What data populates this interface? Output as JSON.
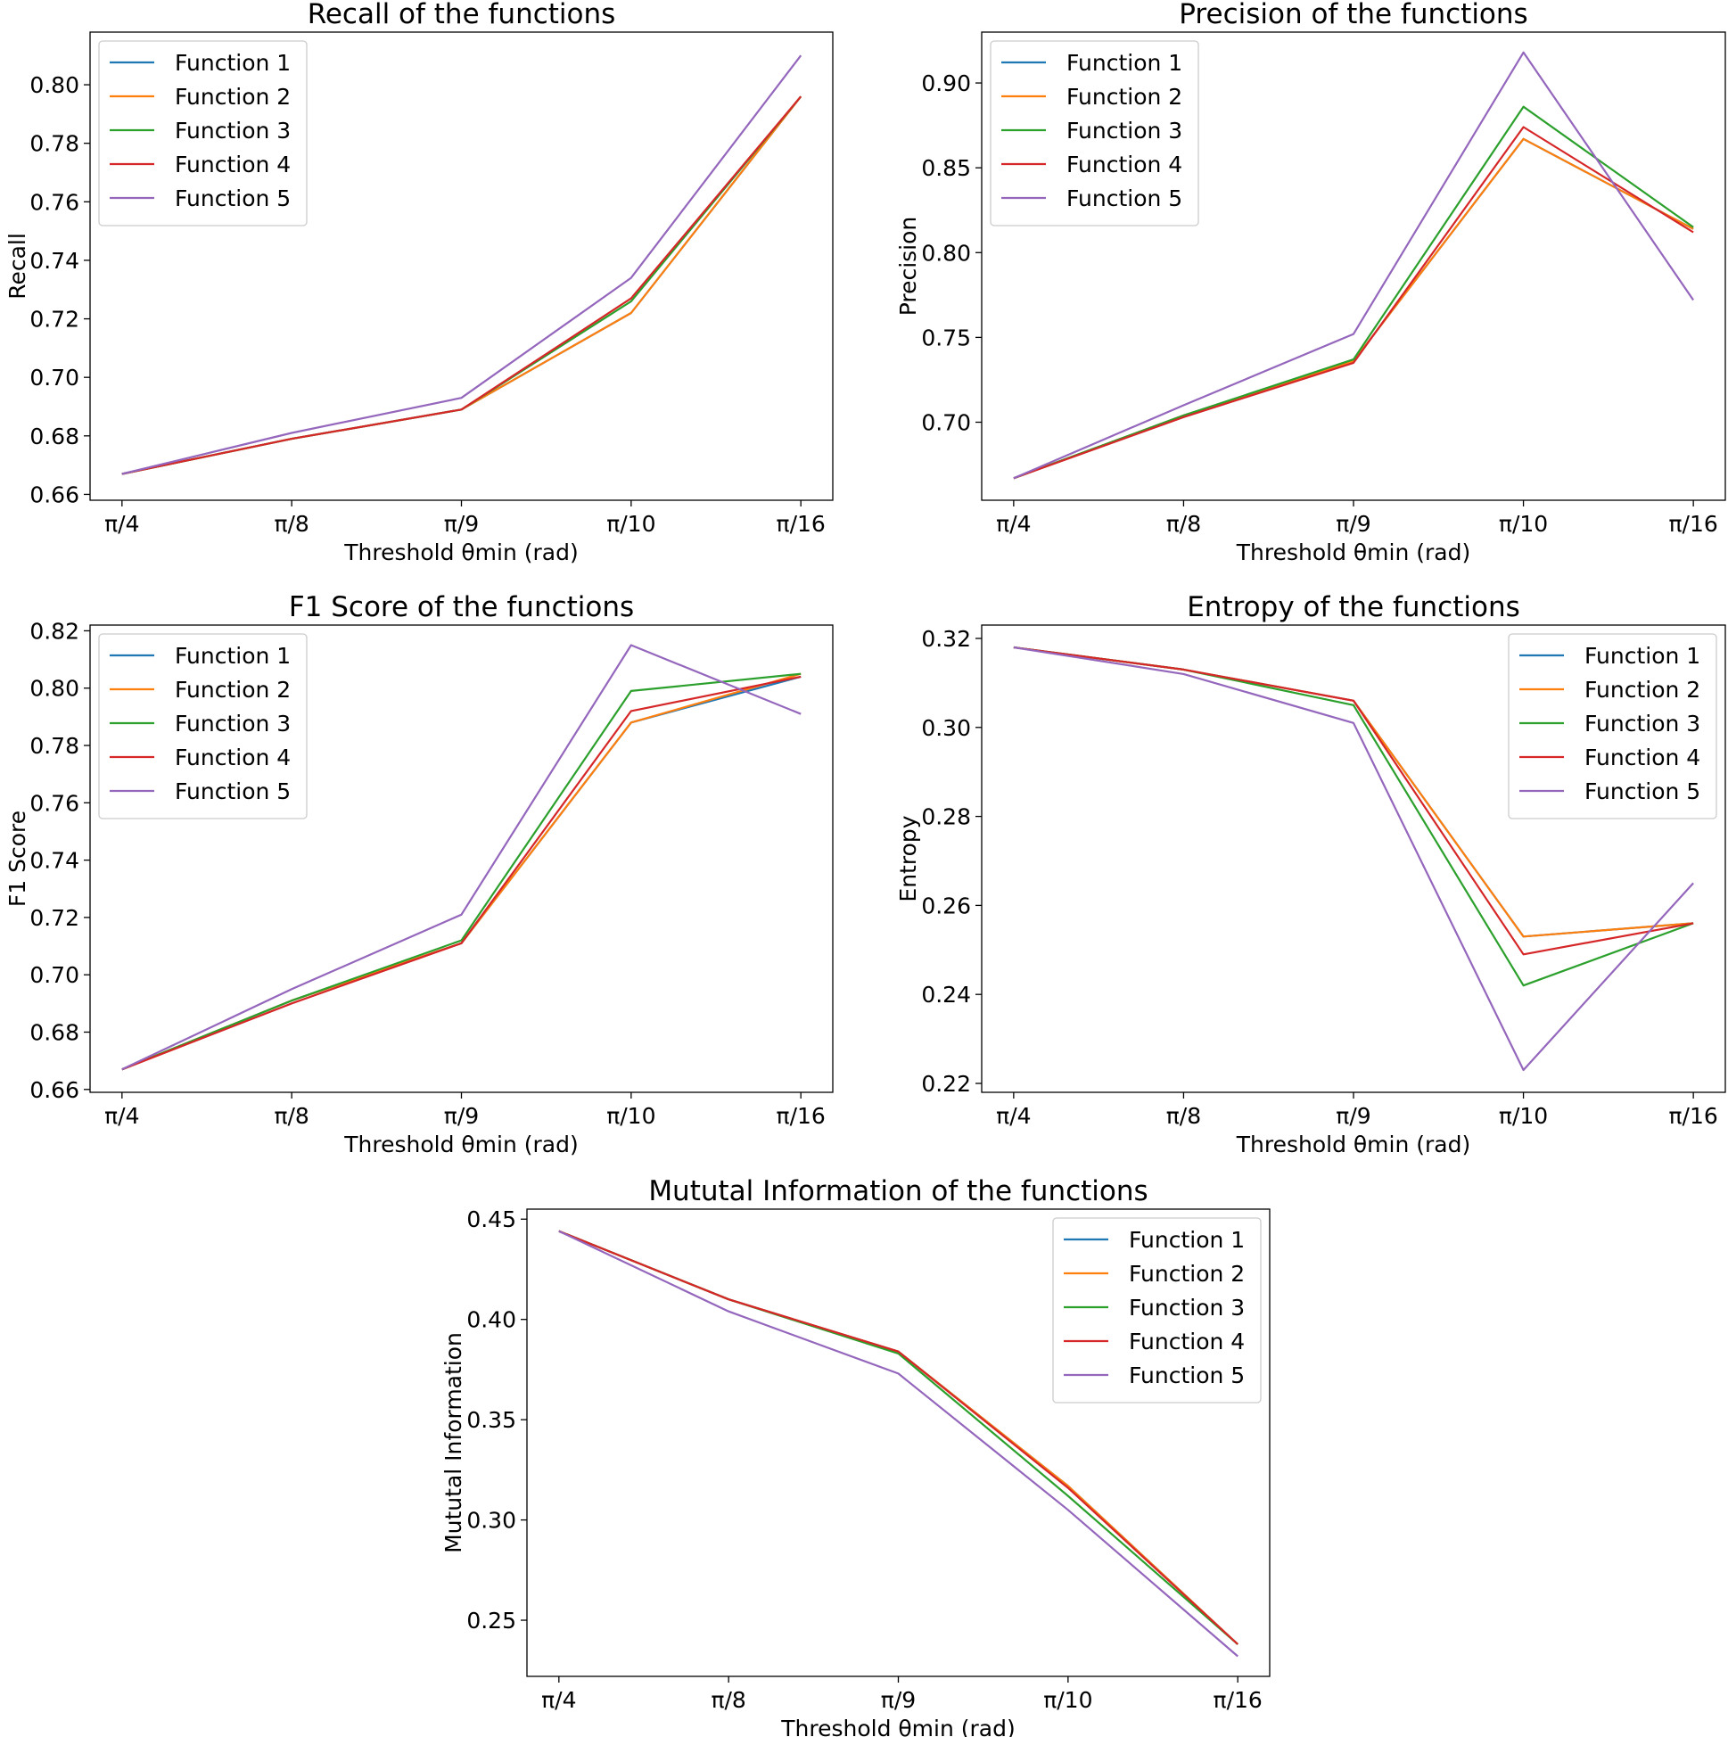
{
  "chart_data": [
    {
      "type": "line",
      "title": "Recall of the functions",
      "xlabel": "Threshold  θmin (rad)",
      "ylabel": "Recall",
      "categories": [
        "π/4",
        "π/8",
        "π/9",
        "π/10",
        "π/16"
      ],
      "ylim": [
        0.658,
        0.818
      ],
      "yticks": [
        0.66,
        0.68,
        0.7,
        0.72,
        0.74,
        0.76,
        0.78,
        0.8
      ],
      "ytick_labels": [
        "0.66",
        "0.68",
        "0.70",
        "0.72",
        "0.74",
        "0.76",
        "0.78",
        "0.80"
      ],
      "legend_position": "upper-left",
      "grid": false,
      "series": [
        {
          "name": "Function 1",
          "color": "#1f77b4",
          "values": [
            0.667,
            0.679,
            0.689,
            0.722,
            0.796
          ]
        },
        {
          "name": "Function 2",
          "color": "#ff7f0e",
          "values": [
            0.667,
            0.679,
            0.689,
            0.722,
            0.796
          ]
        },
        {
          "name": "Function 3",
          "color": "#2ca02c",
          "values": [
            0.667,
            0.679,
            0.689,
            0.726,
            0.796
          ]
        },
        {
          "name": "Function 4",
          "color": "#d62728",
          "values": [
            0.667,
            0.679,
            0.689,
            0.727,
            0.796
          ]
        },
        {
          "name": "Function 5",
          "color": "#9467bd",
          "values": [
            0.667,
            0.681,
            0.693,
            0.734,
            0.81
          ]
        }
      ]
    },
    {
      "type": "line",
      "title": "Precision of the functions",
      "xlabel": "Threshold  θmin (rad)",
      "ylabel": "Precision",
      "categories": [
        "π/4",
        "π/8",
        "π/9",
        "π/10",
        "π/16"
      ],
      "ylim": [
        0.654,
        0.93
      ],
      "yticks": [
        0.7,
        0.75,
        0.8,
        0.85,
        0.9
      ],
      "ytick_labels": [
        "0.70",
        "0.75",
        "0.80",
        "0.85",
        "0.90"
      ],
      "legend_position": "upper-left",
      "grid": false,
      "series": [
        {
          "name": "Function 1",
          "color": "#1f77b4",
          "values": [
            0.667,
            0.704,
            0.736,
            0.867,
            0.814
          ]
        },
        {
          "name": "Function 2",
          "color": "#ff7f0e",
          "values": [
            0.667,
            0.704,
            0.736,
            0.867,
            0.814
          ]
        },
        {
          "name": "Function 3",
          "color": "#2ca02c",
          "values": [
            0.667,
            0.704,
            0.737,
            0.886,
            0.815
          ]
        },
        {
          "name": "Function 4",
          "color": "#d62728",
          "values": [
            0.667,
            0.703,
            0.735,
            0.874,
            0.812
          ]
        },
        {
          "name": "Function 5",
          "color": "#9467bd",
          "values": [
            0.667,
            0.71,
            0.752,
            0.918,
            0.772
          ]
        }
      ]
    },
    {
      "type": "line",
      "title": "F1 Score of the functions",
      "xlabel": "Threshold  θmin (rad)",
      "ylabel": "F1 Score",
      "categories": [
        "π/4",
        "π/8",
        "π/9",
        "π/10",
        "π/16"
      ],
      "ylim": [
        0.659,
        0.822
      ],
      "yticks": [
        0.66,
        0.68,
        0.7,
        0.72,
        0.74,
        0.76,
        0.78,
        0.8,
        0.82
      ],
      "ytick_labels": [
        "0.66",
        "0.68",
        "0.70",
        "0.72",
        "0.74",
        "0.76",
        "0.78",
        "0.80",
        "0.82"
      ],
      "legend_position": "upper-left",
      "grid": false,
      "series": [
        {
          "name": "Function 1",
          "color": "#1f77b4",
          "values": [
            0.667,
            0.691,
            0.711,
            0.788,
            0.804
          ]
        },
        {
          "name": "Function 2",
          "color": "#ff7f0e",
          "values": [
            0.667,
            0.691,
            0.711,
            0.788,
            0.805
          ]
        },
        {
          "name": "Function 3",
          "color": "#2ca02c",
          "values": [
            0.667,
            0.691,
            0.712,
            0.799,
            0.805
          ]
        },
        {
          "name": "Function 4",
          "color": "#d62728",
          "values": [
            0.667,
            0.69,
            0.711,
            0.792,
            0.804
          ]
        },
        {
          "name": "Function 5",
          "color": "#9467bd",
          "values": [
            0.667,
            0.695,
            0.721,
            0.815,
            0.791
          ]
        }
      ]
    },
    {
      "type": "line",
      "title": "Entropy of the functions",
      "xlabel": "Threshold  θmin (rad)",
      "ylabel": "Entropy",
      "categories": [
        "π/4",
        "π/8",
        "π/9",
        "π/10",
        "π/16"
      ],
      "ylim": [
        0.218,
        0.323
      ],
      "yticks": [
        0.22,
        0.24,
        0.26,
        0.28,
        0.3,
        0.32
      ],
      "ytick_labels": [
        "0.22",
        "0.24",
        "0.26",
        "0.28",
        "0.30",
        "0.32"
      ],
      "legend_position": "upper-right",
      "grid": false,
      "series": [
        {
          "name": "Function 1",
          "color": "#1f77b4",
          "values": [
            0.318,
            0.313,
            0.306,
            0.253,
            0.256
          ]
        },
        {
          "name": "Function 2",
          "color": "#ff7f0e",
          "values": [
            0.318,
            0.313,
            0.306,
            0.253,
            0.256
          ]
        },
        {
          "name": "Function 3",
          "color": "#2ca02c",
          "values": [
            0.318,
            0.313,
            0.305,
            0.242,
            0.256
          ]
        },
        {
          "name": "Function 4",
          "color": "#d62728",
          "values": [
            0.318,
            0.313,
            0.306,
            0.249,
            0.256
          ]
        },
        {
          "name": "Function 5",
          "color": "#9467bd",
          "values": [
            0.318,
            0.312,
            0.301,
            0.223,
            0.265
          ]
        }
      ]
    },
    {
      "type": "line",
      "title": "Mututal Information of the functions",
      "xlabel": "Threshold  θmin (rad)",
      "ylabel": "Mututal Information",
      "categories": [
        "π/4",
        "π/8",
        "π/9",
        "π/10",
        "π/16"
      ],
      "ylim": [
        0.222,
        0.455
      ],
      "yticks": [
        0.25,
        0.3,
        0.35,
        0.4,
        0.45
      ],
      "ytick_labels": [
        "0.25",
        "0.30",
        "0.35",
        "0.40",
        "0.45"
      ],
      "legend_position": "upper-right",
      "grid": false,
      "series": [
        {
          "name": "Function 1",
          "color": "#1f77b4",
          "values": [
            0.444,
            0.41,
            0.384,
            0.317,
            0.238
          ]
        },
        {
          "name": "Function 2",
          "color": "#ff7f0e",
          "values": [
            0.444,
            0.41,
            0.384,
            0.317,
            0.238
          ]
        },
        {
          "name": "Function 3",
          "color": "#2ca02c",
          "values": [
            0.444,
            0.41,
            0.383,
            0.312,
            0.238
          ]
        },
        {
          "name": "Function 4",
          "color": "#d62728",
          "values": [
            0.444,
            0.41,
            0.384,
            0.316,
            0.238
          ]
        },
        {
          "name": "Function 5",
          "color": "#9467bd",
          "values": [
            0.444,
            0.404,
            0.373,
            0.305,
            0.232
          ]
        }
      ]
    }
  ]
}
